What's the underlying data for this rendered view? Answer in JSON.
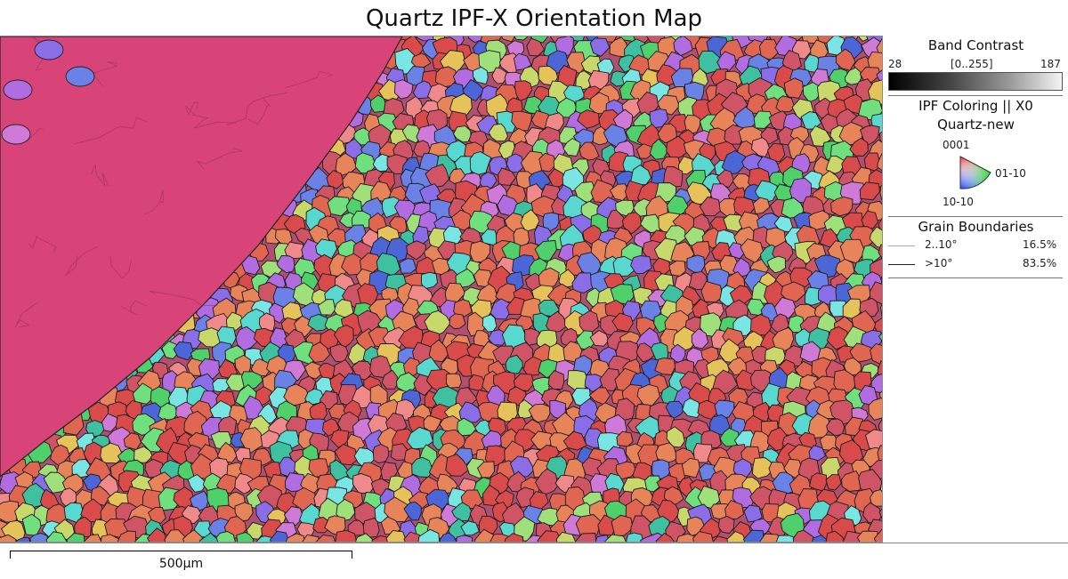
{
  "title": "Quartz IPF-X Orientation Map",
  "legend": {
    "band_contrast": {
      "heading": "Band Contrast",
      "min": "28",
      "range": "[0..255]",
      "max": "187"
    },
    "ipf": {
      "heading": "IPF Coloring || X0",
      "phase": "Quartz-new",
      "pole_top": "0001",
      "pole_right": "01-10",
      "pole_bottom": "10-10"
    },
    "grain_boundaries": {
      "heading": "Grain Boundaries",
      "items": [
        {
          "range": "2..10°",
          "percent": "16.5%",
          "color": "#aaaaaa"
        },
        {
          "range": ">10°",
          "percent": "83.5%",
          "color": "#222222"
        }
      ]
    }
  },
  "scale_bar": {
    "label": "500µm"
  },
  "colors": {
    "large_grain": "#d94478",
    "palette": [
      "#d94a4a",
      "#e06652",
      "#cf5466",
      "#e8845a",
      "#4fd06a",
      "#6fe07d",
      "#3fc0a0",
      "#59d8d0",
      "#7ae6e4",
      "#8a6ee8",
      "#6a82e6",
      "#4c66d8",
      "#b06ce0",
      "#d07ad8",
      "#c8d86a",
      "#e6c25a",
      "#9fe07a",
      "#f08a8a"
    ]
  }
}
